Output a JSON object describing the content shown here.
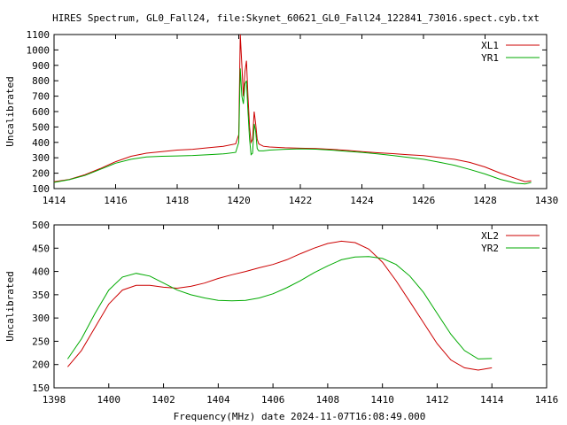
{
  "figure": {
    "title": "HIRES Spectrum, GL0_Fall24, file:Skynet_60621_GL0_Fall24_122841_73016.spect.cyb.txt",
    "xlabel": "Frequency(MHz) date 2024-11-07T16:08:49.000"
  },
  "chart_data": [
    {
      "type": "line",
      "ylabel": "Uncalibrated",
      "xlim": [
        1414,
        1430
      ],
      "ylim": [
        100,
        1100
      ],
      "xticks": [
        1414,
        1416,
        1418,
        1420,
        1422,
        1424,
        1426,
        1428,
        1430
      ],
      "yticks": [
        100,
        200,
        300,
        400,
        500,
        600,
        700,
        800,
        900,
        1000,
        1100
      ],
      "legend_position": "top-right",
      "series": [
        {
          "name": "XL1",
          "color": "#cc0000",
          "x": [
            1414.0,
            1414.5,
            1415.0,
            1415.5,
            1416.0,
            1416.5,
            1417.0,
            1417.5,
            1418.0,
            1418.5,
            1419.0,
            1419.5,
            1419.9,
            1420.0,
            1420.05,
            1420.1,
            1420.15,
            1420.2,
            1420.25,
            1420.3,
            1420.35,
            1420.4,
            1420.45,
            1420.5,
            1420.55,
            1420.6,
            1420.65,
            1420.7,
            1420.8,
            1421.0,
            1421.5,
            1422.0,
            1422.5,
            1423.0,
            1423.5,
            1424.0,
            1424.5,
            1425.0,
            1425.5,
            1426.0,
            1426.5,
            1427.0,
            1427.5,
            1428.0,
            1428.5,
            1429.0,
            1429.3,
            1429.5
          ],
          "y": [
            145,
            160,
            190,
            230,
            275,
            310,
            330,
            340,
            350,
            355,
            365,
            375,
            390,
            450,
            1100,
            900,
            700,
            860,
            930,
            700,
            500,
            400,
            420,
            600,
            520,
            420,
            390,
            385,
            375,
            370,
            365,
            362,
            360,
            355,
            348,
            340,
            333,
            327,
            320,
            314,
            302,
            290,
            270,
            240,
            200,
            165,
            145,
            150
          ]
        },
        {
          "name": "YR1",
          "color": "#00aa00",
          "x": [
            1414.0,
            1414.5,
            1415.0,
            1415.5,
            1416.0,
            1416.5,
            1417.0,
            1417.5,
            1418.0,
            1418.5,
            1419.0,
            1419.5,
            1419.9,
            1420.0,
            1420.05,
            1420.1,
            1420.15,
            1420.2,
            1420.25,
            1420.3,
            1420.35,
            1420.4,
            1420.45,
            1420.5,
            1420.55,
            1420.6,
            1420.65,
            1420.7,
            1420.8,
            1421.0,
            1421.5,
            1422.0,
            1422.5,
            1423.0,
            1423.5,
            1424.0,
            1424.5,
            1425.0,
            1425.5,
            1426.0,
            1426.5,
            1427.0,
            1427.5,
            1428.0,
            1428.5,
            1429.0,
            1429.3,
            1429.5
          ],
          "y": [
            140,
            158,
            185,
            225,
            265,
            290,
            305,
            310,
            312,
            315,
            320,
            325,
            335,
            400,
            880,
            700,
            650,
            780,
            800,
            600,
            420,
            320,
            330,
            520,
            470,
            360,
            345,
            345,
            345,
            350,
            355,
            358,
            356,
            350,
            342,
            335,
            325,
            315,
            303,
            290,
            272,
            252,
            225,
            195,
            160,
            135,
            130,
            140
          ]
        }
      ]
    },
    {
      "type": "line",
      "ylabel": "Uncalibrated",
      "xlim": [
        1398,
        1416
      ],
      "ylim": [
        150,
        500
      ],
      "xticks": [
        1398,
        1400,
        1402,
        1404,
        1406,
        1408,
        1410,
        1412,
        1414,
        1416
      ],
      "yticks": [
        150,
        200,
        250,
        300,
        350,
        400,
        450,
        500
      ],
      "legend_position": "top-right",
      "series": [
        {
          "name": "XL2",
          "color": "#cc0000",
          "x": [
            1398.5,
            1399.0,
            1399.5,
            1400.0,
            1400.5,
            1401.0,
            1401.5,
            1402.0,
            1402.5,
            1403.0,
            1403.5,
            1404.0,
            1404.5,
            1405.0,
            1405.5,
            1406.0,
            1406.5,
            1407.0,
            1407.5,
            1408.0,
            1408.5,
            1409.0,
            1409.5,
            1410.0,
            1410.5,
            1411.0,
            1411.5,
            1412.0,
            1412.5,
            1413.0,
            1413.5,
            1414.0
          ],
          "y": [
            195,
            230,
            280,
            330,
            360,
            370,
            370,
            366,
            364,
            368,
            375,
            385,
            393,
            400,
            408,
            415,
            425,
            438,
            450,
            460,
            465,
            462,
            448,
            420,
            380,
            335,
            290,
            245,
            210,
            193,
            188,
            193
          ]
        },
        {
          "name": "YR2",
          "color": "#00aa00",
          "x": [
            1398.5,
            1399.0,
            1399.5,
            1400.0,
            1400.5,
            1401.0,
            1401.5,
            1402.0,
            1402.5,
            1403.0,
            1403.5,
            1404.0,
            1404.5,
            1405.0,
            1405.5,
            1406.0,
            1406.5,
            1407.0,
            1407.5,
            1408.0,
            1408.5,
            1409.0,
            1409.5,
            1410.0,
            1410.5,
            1411.0,
            1411.5,
            1412.0,
            1412.5,
            1413.0,
            1413.5,
            1414.0
          ],
          "y": [
            212,
            255,
            310,
            360,
            388,
            396,
            390,
            375,
            360,
            350,
            343,
            338,
            337,
            338,
            343,
            352,
            365,
            380,
            397,
            412,
            425,
            431,
            432,
            428,
            415,
            390,
            355,
            310,
            265,
            230,
            212,
            213
          ]
        }
      ]
    }
  ]
}
